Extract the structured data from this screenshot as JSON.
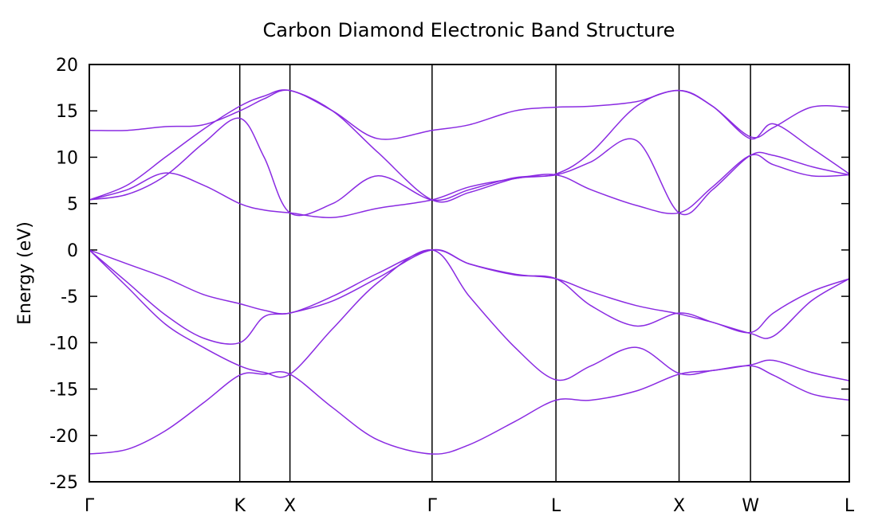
{
  "chart_data": {
    "type": "line",
    "title": "Carbon Diamond Electronic Band Structure",
    "xlabel": "",
    "ylabel": "Energy (eV)",
    "ylim": [
      -25,
      20
    ],
    "yticks": [
      20,
      15,
      10,
      5,
      0,
      -5,
      -10,
      -15,
      -20,
      -25
    ],
    "ytick_labels": [
      "20",
      "15",
      "10",
      "5",
      "0",
      "-5",
      "-10",
      "-15",
      "-20",
      "-25"
    ],
    "xlim": [
      0,
      1
    ],
    "grid": false,
    "legend": "none",
    "line_color": "#8a2be2",
    "kpoints": [
      {
        "label": "Γ",
        "x": 0.0
      },
      {
        "label": "K",
        "x": 0.198
      },
      {
        "label": "X",
        "x": 0.264
      },
      {
        "label": "Γ",
        "x": 0.451
      },
      {
        "label": "L",
        "x": 0.614
      },
      {
        "label": "X",
        "x": 0.776
      },
      {
        "label": "W",
        "x": 0.87
      },
      {
        "label": "L",
        "x": 1.0
      }
    ],
    "series": [
      {
        "x": [
          0,
          0.05,
          0.1,
          0.15,
          0.198,
          0.23,
          0.264,
          0.32,
          0.38,
          0.451,
          0.5,
          0.56,
          0.614,
          0.66,
          0.72,
          0.776,
          0.82,
          0.87,
          0.9,
          0.95,
          1.0
        ],
        "values": [
          -22.0,
          -21.5,
          -19.5,
          -16.5,
          -13.5,
          -13.4,
          -13.4,
          -17.0,
          -20.5,
          -22.0,
          -21.0,
          -18.5,
          -16.2,
          -16.2,
          -15.2,
          -13.4,
          -13.0,
          -12.5,
          -13.5,
          -15.5,
          -16.2
        ]
      },
      {
        "x": [
          0,
          0.05,
          0.1,
          0.15,
          0.198,
          0.23,
          0.264,
          0.32,
          0.38,
          0.451,
          0.5,
          0.56,
          0.614,
          0.66,
          0.72,
          0.776,
          0.82,
          0.87,
          0.9,
          0.95,
          1.0
        ],
        "values": [
          0.0,
          -4.0,
          -8.0,
          -10.5,
          -12.5,
          -13.2,
          -13.4,
          -8.5,
          -3.5,
          0.0,
          -5.0,
          -10.5,
          -14.0,
          -12.5,
          -10.5,
          -13.3,
          -13.0,
          -12.4,
          -11.9,
          -13.2,
          -14.1
        ]
      },
      {
        "x": [
          0,
          0.05,
          0.1,
          0.15,
          0.198,
          0.23,
          0.264,
          0.32,
          0.38,
          0.451,
          0.5,
          0.56,
          0.614,
          0.66,
          0.72,
          0.776,
          0.82,
          0.87,
          0.9,
          0.95,
          1.0
        ],
        "values": [
          0.0,
          -3.5,
          -7.0,
          -9.5,
          -10.0,
          -7.2,
          -6.8,
          -5.5,
          -3.0,
          0.0,
          -1.5,
          -2.7,
          -3.1,
          -6.0,
          -8.2,
          -6.8,
          -7.8,
          -9.0,
          -9.3,
          -5.5,
          -3.1
        ]
      },
      {
        "x": [
          0,
          0.05,
          0.1,
          0.15,
          0.198,
          0.23,
          0.264,
          0.32,
          0.38,
          0.451,
          0.5,
          0.56,
          0.614,
          0.66,
          0.72,
          0.776,
          0.82,
          0.87,
          0.9,
          0.95,
          1.0
        ],
        "values": [
          0.0,
          -1.5,
          -3.0,
          -4.8,
          -5.8,
          -6.5,
          -6.8,
          -5.0,
          -2.5,
          0.0,
          -1.5,
          -2.6,
          -3.1,
          -4.5,
          -6.0,
          -6.9,
          -7.8,
          -8.9,
          -6.8,
          -4.5,
          -3.1
        ]
      },
      {
        "x": [
          0,
          0.05,
          0.1,
          0.15,
          0.198,
          0.23,
          0.264,
          0.32,
          0.38,
          0.451,
          0.5,
          0.56,
          0.614,
          0.66,
          0.72,
          0.776,
          0.82,
          0.87,
          0.9,
          0.95,
          1.0
        ],
        "values": [
          5.4,
          6.5,
          8.3,
          7.0,
          5.0,
          4.3,
          4.0,
          3.5,
          4.5,
          5.4,
          6.8,
          7.7,
          8.1,
          6.5,
          4.8,
          4.0,
          6.8,
          10.2,
          9.2,
          8.0,
          8.1
        ]
      },
      {
        "x": [
          0,
          0.05,
          0.1,
          0.15,
          0.198,
          0.23,
          0.264,
          0.32,
          0.38,
          0.451,
          0.5,
          0.56,
          0.614,
          0.66,
          0.72,
          0.776,
          0.82,
          0.87,
          0.9,
          0.95,
          1.0
        ],
        "values": [
          5.4,
          6.0,
          8.0,
          11.5,
          14.2,
          10.0,
          4.0,
          5.0,
          8.0,
          5.4,
          6.5,
          7.8,
          8.1,
          9.5,
          11.8,
          4.0,
          6.5,
          10.2,
          10.2,
          9.0,
          8.1
        ]
      },
      {
        "x": [
          0,
          0.05,
          0.1,
          0.15,
          0.198,
          0.23,
          0.264,
          0.32,
          0.38,
          0.451,
          0.5,
          0.56,
          0.614,
          0.66,
          0.72,
          0.776,
          0.82,
          0.87,
          0.9,
          0.95,
          1.0
        ],
        "values": [
          5.4,
          7.0,
          10.0,
          13.0,
          15.5,
          16.6,
          17.2,
          15.0,
          10.5,
          5.4,
          6.2,
          7.7,
          8.2,
          10.5,
          15.5,
          17.2,
          15.5,
          12.0,
          13.6,
          11.0,
          8.2
        ]
      },
      {
        "x": [
          0,
          0.05,
          0.1,
          0.15,
          0.198,
          0.23,
          0.264,
          0.32,
          0.38,
          0.451,
          0.5,
          0.56,
          0.614,
          0.66,
          0.72,
          0.776,
          0.82,
          0.87,
          0.9,
          0.95,
          1.0
        ],
        "values": [
          12.9,
          12.9,
          13.3,
          13.5,
          15.0,
          16.3,
          17.2,
          15.0,
          12.0,
          12.9,
          13.5,
          15.0,
          15.4,
          15.5,
          16.0,
          17.2,
          15.5,
          12.2,
          13.2,
          15.4,
          15.4
        ]
      }
    ]
  }
}
